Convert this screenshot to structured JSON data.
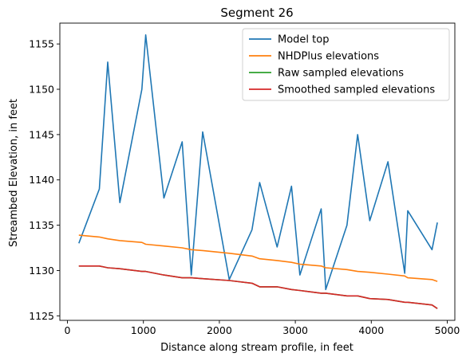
{
  "chart_data": {
    "type": "line",
    "title": "Segment 26",
    "xlabel": "Distance along stream profile, in feet",
    "ylabel": "Streambed Elevation, in feet",
    "xlim": [
      -100,
      5100
    ],
    "ylim": [
      1124.5,
      1157.3
    ],
    "xticks": [
      0,
      1000,
      2000,
      3000,
      4000,
      5000
    ],
    "yticks": [
      1125,
      1130,
      1135,
      1140,
      1145,
      1150,
      1155
    ],
    "grid": false,
    "legend_position": "top-right",
    "series": [
      {
        "name": "Model top",
        "color": "#1f77b4",
        "x": [
          150,
          420,
          530,
          690,
          980,
          1030,
          1270,
          1510,
          1630,
          1780,
          2130,
          2430,
          2530,
          2760,
          2950,
          3060,
          3340,
          3400,
          3680,
          3820,
          3980,
          4220,
          4440,
          4480,
          4800,
          4870
        ],
        "y": [
          1133.0,
          1139.0,
          1153.0,
          1137.5,
          1150.0,
          1156.0,
          1138.0,
          1144.2,
          1129.5,
          1145.3,
          1129.0,
          1134.5,
          1139.7,
          1132.6,
          1139.3,
          1129.5,
          1136.8,
          1127.9,
          1135.0,
          1145.0,
          1135.5,
          1142.0,
          1129.7,
          1136.6,
          1132.3,
          1135.3
        ]
      },
      {
        "name": "NHDPlus elevations",
        "color": "#ff7f0e",
        "x": [
          150,
          420,
          530,
          690,
          980,
          1030,
          1270,
          1510,
          1630,
          1780,
          2130,
          2430,
          2530,
          2760,
          2950,
          3060,
          3340,
          3400,
          3680,
          3820,
          3980,
          4220,
          4440,
          4480,
          4800,
          4870
        ],
        "y": [
          1133.9,
          1133.7,
          1133.5,
          1133.3,
          1133.1,
          1132.9,
          1132.7,
          1132.5,
          1132.3,
          1132.2,
          1131.9,
          1131.6,
          1131.3,
          1131.1,
          1130.9,
          1130.7,
          1130.5,
          1130.3,
          1130.1,
          1129.9,
          1129.8,
          1129.6,
          1129.4,
          1129.2,
          1129.0,
          1128.8
        ]
      },
      {
        "name": "Raw sampled elevations",
        "color": "#2ca02c",
        "x": [
          150,
          420,
          530,
          690,
          980,
          1030,
          1270,
          1510,
          1630,
          1780,
          2130,
          2430,
          2530,
          2760,
          2950,
          3060,
          3340,
          3400,
          3680,
          3820,
          3980,
          4220,
          4440,
          4480,
          4800,
          4870
        ],
        "y": [
          1130.5,
          1130.5,
          1130.3,
          1130.2,
          1129.9,
          1129.9,
          1129.5,
          1129.2,
          1129.2,
          1129.1,
          1128.9,
          1128.6,
          1128.2,
          1128.2,
          1127.9,
          1127.8,
          1127.5,
          1127.5,
          1127.2,
          1127.2,
          1126.9,
          1126.8,
          1126.5,
          1126.5,
          1126.2,
          1125.8
        ]
      },
      {
        "name": "Smoothed sampled elevations",
        "color": "#d62728",
        "x": [
          150,
          420,
          530,
          690,
          980,
          1030,
          1270,
          1510,
          1630,
          1780,
          2130,
          2430,
          2530,
          2760,
          2950,
          3060,
          3340,
          3400,
          3680,
          3820,
          3980,
          4220,
          4440,
          4480,
          4800,
          4870
        ],
        "y": [
          1130.5,
          1130.5,
          1130.3,
          1130.2,
          1129.9,
          1129.9,
          1129.5,
          1129.2,
          1129.2,
          1129.1,
          1128.9,
          1128.6,
          1128.2,
          1128.2,
          1127.9,
          1127.8,
          1127.5,
          1127.5,
          1127.2,
          1127.2,
          1126.9,
          1126.8,
          1126.5,
          1126.5,
          1126.2,
          1125.8
        ]
      }
    ]
  }
}
